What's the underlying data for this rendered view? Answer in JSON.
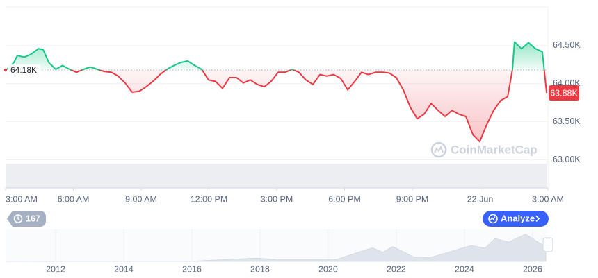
{
  "chart_data": [
    {
      "type": "line",
      "x": [
        3.06,
        3.37,
        3.52,
        3.83,
        4.14,
        4.45,
        4.66,
        4.91,
        5.22,
        5.52,
        5.83,
        6.14,
        6.45,
        6.75,
        7.06,
        7.37,
        7.68,
        7.98,
        8.29,
        8.6,
        8.91,
        9.22,
        9.52,
        9.83,
        10.14,
        10.45,
        10.75,
        11.06,
        11.37,
        11.68,
        11.98,
        12.29,
        12.6,
        12.91,
        13.22,
        13.52,
        13.83,
        14.14,
        14.45,
        14.75,
        15.06,
        15.37,
        15.68,
        15.98,
        16.29,
        16.6,
        16.91,
        17.22,
        17.52,
        17.83,
        18.14,
        18.45,
        18.75,
        19.06,
        19.37,
        19.68,
        19.98,
        20.29,
        20.6,
        20.91,
        21.22,
        21.52,
        21.83,
        22.14,
        22.45,
        22.75,
        23.06,
        23.37,
        23.68,
        23.98,
        24.29,
        24.6,
        24.91,
        25.22,
        25.43,
        25.52,
        25.83,
        26.14,
        26.45,
        26.75,
        26.94
      ],
      "values": [
        64190,
        64280,
        64370,
        64350,
        64390,
        64460,
        64450,
        64280,
        64190,
        64240,
        64190,
        64150,
        64190,
        64220,
        64190,
        64160,
        64150,
        64100,
        64010,
        63890,
        63900,
        63960,
        64030,
        64120,
        64190,
        64240,
        64280,
        64300,
        64240,
        64190,
        64050,
        64030,
        63940,
        64080,
        64080,
        64010,
        64050,
        63990,
        63960,
        64030,
        64150,
        64150,
        64190,
        64150,
        64050,
        63990,
        64120,
        64100,
        64120,
        64070,
        63920,
        64030,
        64150,
        64120,
        64150,
        64150,
        64140,
        64080,
        63920,
        63690,
        63540,
        63600,
        63740,
        63650,
        63570,
        63650,
        63600,
        63570,
        63330,
        63240,
        63460,
        63650,
        63780,
        63830,
        64190,
        64550,
        64460,
        64540,
        64460,
        64420,
        63880
      ],
      "xlim": [
        3,
        27
      ],
      "ylim": [
        62640,
        65010
      ],
      "xticks": [
        {
          "value": 3,
          "label": "3:00 AM"
        },
        {
          "value": 6,
          "label": "6:00 AM"
        },
        {
          "value": 9,
          "label": "9:00 AM"
        },
        {
          "value": 12,
          "label": "12:00 PM"
        },
        {
          "value": 15,
          "label": "3:00 PM"
        },
        {
          "value": 18,
          "label": "6:00 PM"
        },
        {
          "value": 21,
          "label": "9:00 PM"
        },
        {
          "value": 24,
          "label": "22 Jun"
        },
        {
          "value": 27,
          "label": "3:00 AM"
        }
      ],
      "yticks": [
        {
          "value": 63000,
          "label": "63.00K"
        },
        {
          "value": 63500,
          "label": "63.50K"
        },
        {
          "value": 64000,
          "label": "64.00K"
        },
        {
          "value": 64500,
          "label": "64.50K"
        }
      ],
      "baseline": {
        "value": 64180,
        "label": "64.18K"
      },
      "last_price": {
        "value": 63880,
        "label": "63.88K"
      },
      "colors": {
        "up": "#16c784",
        "down": "#ea3943"
      },
      "grid": true
    },
    {
      "type": "area",
      "x": [
        2010.53,
        2013.0,
        2016.0,
        2017.9,
        2018.5,
        2020.2,
        2021.3,
        2021.6,
        2021.9,
        2022.5,
        2023.0,
        2024.2,
        2024.6,
        2024.9,
        2025.3,
        2025.8,
        2026.1,
        2026.39
      ],
      "values": [
        0,
        500,
        1000,
        15000,
        7000,
        7000,
        60000,
        40000,
        65000,
        20000,
        17000,
        70000,
        58000,
        100000,
        85000,
        120000,
        90000,
        64000
      ],
      "xlim": [
        2010.53,
        2026.39
      ],
      "ylim": [
        0,
        140000
      ],
      "xticks": [
        2012,
        2014,
        2016,
        2018,
        2020,
        2022,
        2024,
        2026
      ],
      "color": "#dfe3ea"
    }
  ],
  "ui": {
    "badge": "167",
    "button": "Analyze",
    "watermark": "CoinMarketCap"
  }
}
